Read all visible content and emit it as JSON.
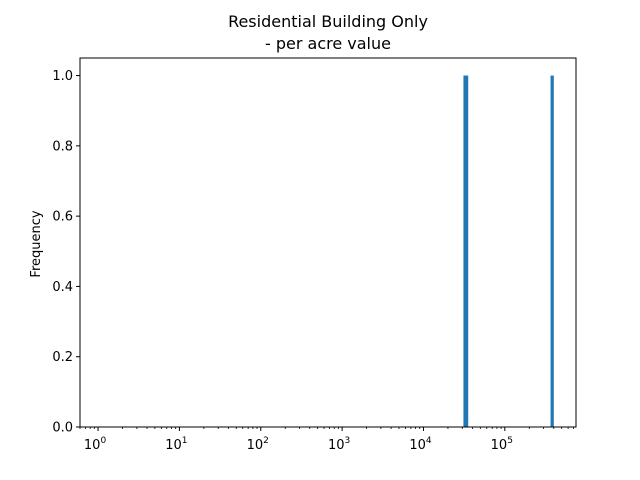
{
  "chart_data": {
    "type": "bar",
    "title": "Residential Building Only\n- per acre value",
    "title_lines": [
      "Residential Building Only",
      "- per acre value"
    ],
    "xlabel": "",
    "ylabel": "Frequency",
    "xscale": "log",
    "xlim": [
      0.6,
      750000
    ],
    "ylim": [
      0,
      1.05
    ],
    "grid": false,
    "legend": "none",
    "bar_color": "#1f77b4",
    "x_ticks": [
      {
        "value": 1,
        "base": "10",
        "exp": "0"
      },
      {
        "value": 10,
        "base": "10",
        "exp": "1"
      },
      {
        "value": 100,
        "base": "10",
        "exp": "2"
      },
      {
        "value": 1000,
        "base": "10",
        "exp": "3"
      },
      {
        "value": 10000,
        "base": "10",
        "exp": "4"
      },
      {
        "value": 100000,
        "base": "10",
        "exp": "5"
      }
    ],
    "y_ticks": [
      {
        "value": 0.0,
        "label": "0.0"
      },
      {
        "value": 0.2,
        "label": "0.2"
      },
      {
        "value": 0.4,
        "label": "0.4"
      },
      {
        "value": 0.6,
        "label": "0.6"
      },
      {
        "value": 0.8,
        "label": "0.8"
      },
      {
        "value": 1.0,
        "label": "1.0"
      }
    ],
    "bars": [
      {
        "x_start": 31000,
        "x_end": 35500,
        "value": 1
      },
      {
        "x_start": 365000,
        "x_end": 400000,
        "value": 1
      }
    ]
  }
}
